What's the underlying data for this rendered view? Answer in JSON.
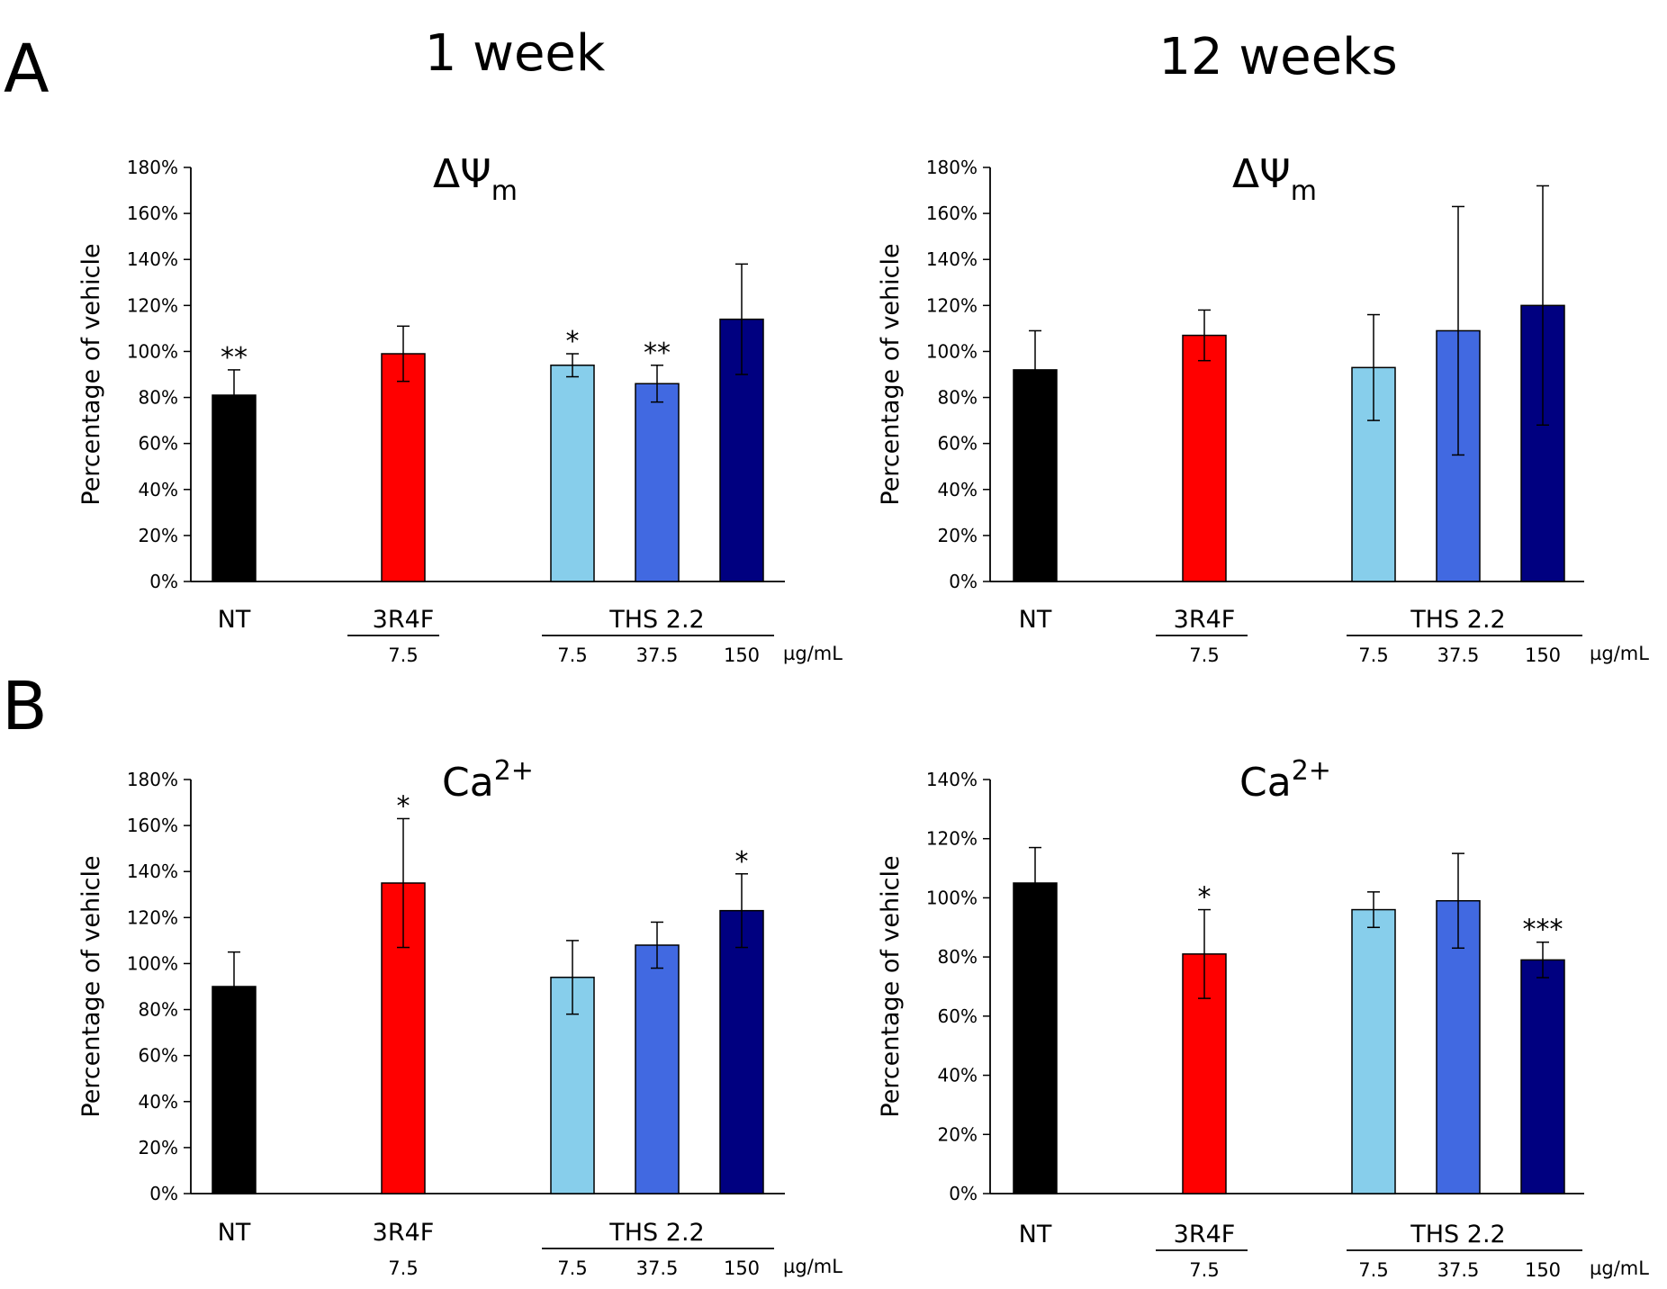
{
  "figure": {
    "panel_labels": [
      "A",
      "B"
    ],
    "column_titles": [
      "1 week",
      "12 weeks"
    ]
  },
  "chart_data": [
    {
      "type": "bar",
      "title": "ΔΨ",
      "title_subscript": "m",
      "ylabel": "Percentage of vehicle",
      "ylim": [
        0,
        180
      ],
      "yticks": [
        "0%",
        "20%",
        "40%",
        "60%",
        "80%",
        "100%",
        "120%",
        "140%",
        "160%",
        "180%"
      ],
      "categories": [
        "NT",
        "3R4F 7.5",
        "THS 2.2 7.5",
        "THS 2.2 37.5",
        "THS 2.2 150"
      ],
      "values": [
        81,
        99,
        94,
        86,
        114
      ],
      "errors": [
        11,
        12,
        5,
        8,
        24
      ],
      "significance": [
        "**",
        "",
        "*",
        "**",
        ""
      ],
      "colors": [
        "#000000",
        "#ff0000",
        "#87ceeb",
        "#4169e1",
        "#000080"
      ],
      "group_labels": [
        "NT",
        "3R4F",
        "THS 2.2"
      ],
      "dose_labels": [
        "7.5",
        "7.5",
        "37.5",
        "150"
      ],
      "unit": "µg/mL"
    },
    {
      "type": "bar",
      "title": "ΔΨ",
      "title_subscript": "m",
      "ylabel": "Percentage of vehicle",
      "ylim": [
        0,
        180
      ],
      "yticks": [
        "0%",
        "20%",
        "40%",
        "60%",
        "80%",
        "100%",
        "120%",
        "140%",
        "160%",
        "180%"
      ],
      "categories": [
        "NT",
        "3R4F 7.5",
        "THS 2.2 7.5",
        "THS 2.2 37.5",
        "THS 2.2 150"
      ],
      "values": [
        92,
        107,
        93,
        109,
        120
      ],
      "errors": [
        17,
        11,
        23,
        54,
        52
      ],
      "significance": [
        "",
        "",
        "",
        "",
        ""
      ],
      "colors": [
        "#000000",
        "#ff0000",
        "#87ceeb",
        "#4169e1",
        "#000080"
      ],
      "group_labels": [
        "NT",
        "3R4F",
        "THS 2.2"
      ],
      "dose_labels": [
        "7.5",
        "7.5",
        "37.5",
        "150"
      ],
      "unit": "µg/mL"
    },
    {
      "type": "bar",
      "title": "Ca",
      "title_superscript": "2+",
      "ylabel": "Percentage of vehicle",
      "ylim": [
        0,
        180
      ],
      "yticks": [
        "0%",
        "20%",
        "40%",
        "60%",
        "80%",
        "100%",
        "120%",
        "140%",
        "160%",
        "180%"
      ],
      "categories": [
        "NT",
        "3R4F 7.5",
        "THS 2.2 7.5",
        "THS 2.2 37.5",
        "THS 2.2 150"
      ],
      "values": [
        90,
        135,
        94,
        108,
        123
      ],
      "errors": [
        15,
        28,
        16,
        10,
        16
      ],
      "significance": [
        "",
        "*",
        "",
        "",
        "*"
      ],
      "colors": [
        "#000000",
        "#ff0000",
        "#87ceeb",
        "#4169e1",
        "#000080"
      ],
      "group_labels": [
        "NT",
        "3R4F",
        "THS 2.2"
      ],
      "dose_labels": [
        "7.5",
        "7.5",
        "37.5",
        "150"
      ],
      "unit": "µg/mL"
    },
    {
      "type": "bar",
      "title": "Ca",
      "title_superscript": "2+",
      "ylabel": "Percentage of vehicle",
      "ylim": [
        0,
        140
      ],
      "yticks": [
        "0%",
        "20%",
        "40%",
        "60%",
        "80%",
        "100%",
        "120%",
        "140%"
      ],
      "categories": [
        "NT",
        "3R4F 7.5",
        "THS 2.2 7.5",
        "THS 2.2 37.5",
        "THS 2.2 150"
      ],
      "values": [
        105,
        81,
        96,
        99,
        79
      ],
      "errors": [
        12,
        15,
        6,
        16,
        6
      ],
      "significance": [
        "",
        "*",
        "",
        "",
        "***"
      ],
      "colors": [
        "#000000",
        "#ff0000",
        "#87ceeb",
        "#4169e1",
        "#000080"
      ],
      "group_labels": [
        "NT",
        "3R4F",
        "THS 2.2"
      ],
      "dose_labels": [
        "7.5",
        "7.5",
        "37.5",
        "150"
      ],
      "unit": "µg/mL"
    }
  ]
}
